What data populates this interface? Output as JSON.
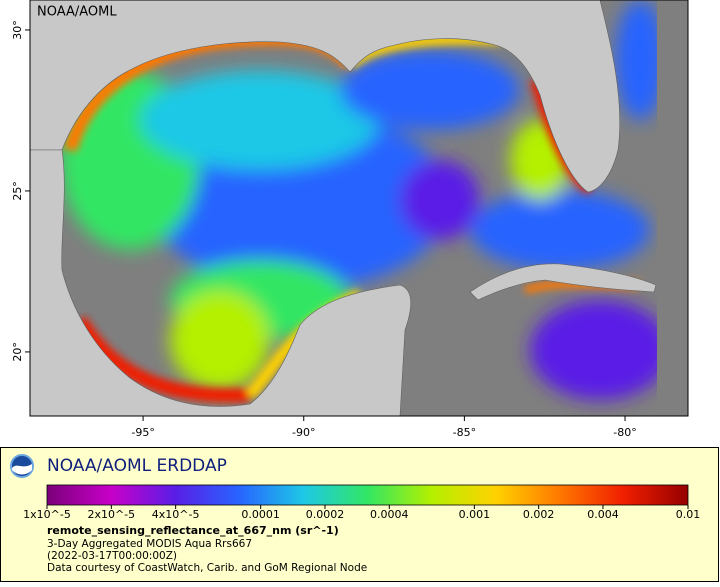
{
  "map": {
    "label": "NOAA/AOML",
    "xlim": [
      -98.52,
      -78.04
    ],
    "ylim": [
      18.01,
      30.93
    ],
    "xticks": [
      {
        "value": -95,
        "label": "-95°"
      },
      {
        "value": -90,
        "label": "-90°"
      },
      {
        "value": -85,
        "label": "-85°"
      },
      {
        "value": -80,
        "label": "-80°"
      }
    ],
    "yticks": [
      {
        "value": 20,
        "label": "20°"
      },
      {
        "value": 25,
        "label": "25°"
      },
      {
        "value": 30,
        "label": "30°"
      }
    ]
  },
  "legend": {
    "title": "NOAA/AOML ERDDAP",
    "colorbar": {
      "scale": "log",
      "lim": [
        1e-05,
        0.01
      ],
      "colors": [
        "#7a007a",
        "#c800c8",
        "#5a1ee6",
        "#2864ff",
        "#1ec8e6",
        "#32e664",
        "#b4f000",
        "#ffd200",
        "#ff7800",
        "#f01e00",
        "#960000"
      ],
      "ticks": [
        {
          "value": 1e-05,
          "label": "1x10^-5"
        },
        {
          "value": 2e-05,
          "label": "2x10^-5"
        },
        {
          "value": 4e-05,
          "label": "4x10^-5"
        },
        {
          "value": 0.0001,
          "label": "0.0001"
        },
        {
          "value": 0.0002,
          "label": "0.0002"
        },
        {
          "value": 0.0004,
          "label": "0.0004"
        },
        {
          "value": 0.001,
          "label": "0.001"
        },
        {
          "value": 0.002,
          "label": "0.002"
        },
        {
          "value": 0.004,
          "label": "0.004"
        },
        {
          "value": 0.01,
          "label": "0.01"
        }
      ]
    },
    "variable": "remote_sensing_reflectance_at_667_nm (sr^-1)",
    "lines": [
      "3-Day Aggregated MODIS Aqua Rrs667",
      "(2022-03-17T00:00:00Z)",
      "Data courtesy of CoastWatch, Carib. and GoM Regional Node"
    ]
  }
}
